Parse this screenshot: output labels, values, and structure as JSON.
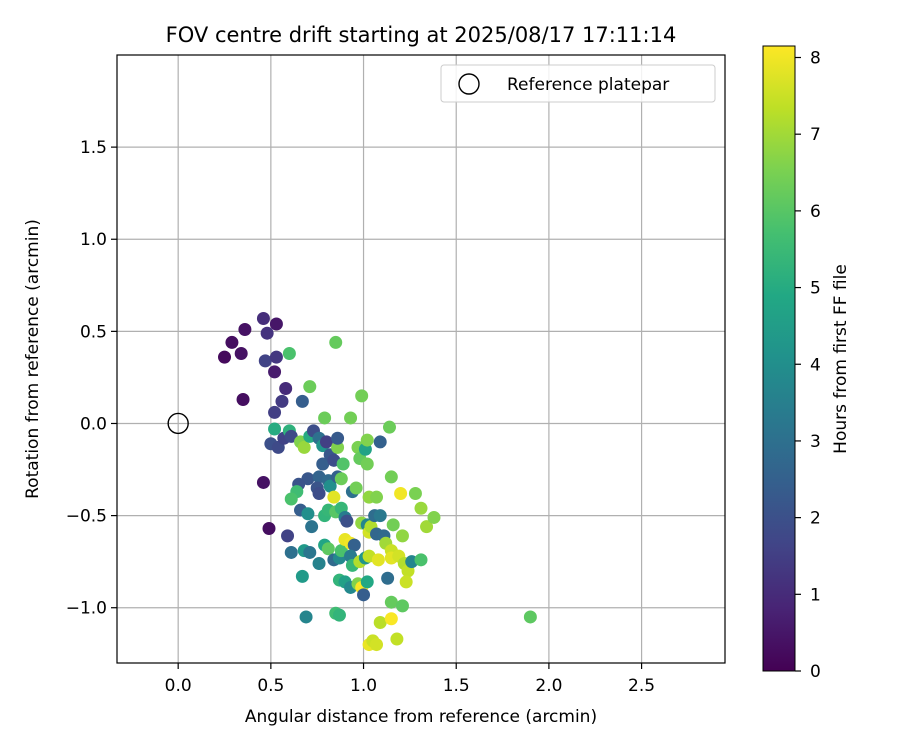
{
  "chart_data": {
    "type": "scatter",
    "title": "FOV centre drift starting at 2025/08/17 17:11:14",
    "xlabel": "Angular distance from reference (arcmin)",
    "ylabel": "Rotation from reference (arcmin)",
    "xlim": [
      -0.33,
      2.95
    ],
    "ylim": [
      -1.3,
      2.0
    ],
    "xticks": [
      0.0,
      0.5,
      1.0,
      1.5,
      2.0,
      2.5
    ],
    "xtick_labels": [
      "0.0",
      "0.5",
      "1.0",
      "1.5",
      "2.0",
      "2.5"
    ],
    "yticks": [
      -1.0,
      -0.5,
      0.0,
      0.5,
      1.0,
      1.5
    ],
    "ytick_labels": [
      "−1.0",
      "−0.5",
      "0.0",
      "0.5",
      "1.0",
      "1.5"
    ],
    "grid": true,
    "legend": {
      "placement": "top-right",
      "label": "Reference platepar"
    },
    "reference_point": {
      "x": 0.0,
      "y": 0.0
    },
    "colorbar": {
      "label": "Hours from first FF file",
      "min": 0,
      "max": 8.15,
      "colormap": "viridis",
      "ticks": [
        0,
        1,
        2,
        3,
        4,
        5,
        6,
        7,
        8
      ],
      "tick_labels": [
        "0",
        "1",
        "2",
        "3",
        "4",
        "5",
        "6",
        "7",
        "8"
      ]
    },
    "points": [
      {
        "x": 0.46,
        "y": 0.57,
        "t": 1.1
      },
      {
        "x": 0.53,
        "y": 0.54,
        "t": 0.5
      },
      {
        "x": 0.36,
        "y": 0.51,
        "t": 0.4
      },
      {
        "x": 0.48,
        "y": 0.49,
        "t": 1.2
      },
      {
        "x": 0.29,
        "y": 0.44,
        "t": 0.3
      },
      {
        "x": 0.25,
        "y": 0.36,
        "t": 0.2
      },
      {
        "x": 0.34,
        "y": 0.38,
        "t": 0.4
      },
      {
        "x": 0.47,
        "y": 0.34,
        "t": 1.6
      },
      {
        "x": 0.53,
        "y": 0.36,
        "t": 1.3
      },
      {
        "x": 0.52,
        "y": 0.28,
        "t": 0.6
      },
      {
        "x": 0.6,
        "y": 0.38,
        "t": 5.8
      },
      {
        "x": 0.85,
        "y": 0.44,
        "t": 6.2
      },
      {
        "x": 0.58,
        "y": 0.19,
        "t": 1.0
      },
      {
        "x": 0.56,
        "y": 0.12,
        "t": 1.4
      },
      {
        "x": 0.35,
        "y": 0.13,
        "t": 0.3
      },
      {
        "x": 0.52,
        "y": 0.06,
        "t": 1.5
      },
      {
        "x": 0.67,
        "y": 0.12,
        "t": 2.4
      },
      {
        "x": 0.71,
        "y": 0.2,
        "t": 6.3
      },
      {
        "x": 0.79,
        "y": 0.03,
        "t": 6.3
      },
      {
        "x": 0.93,
        "y": 0.03,
        "t": 6.4
      },
      {
        "x": 0.99,
        "y": 0.15,
        "t": 6.4
      },
      {
        "x": 1.14,
        "y": -0.02,
        "t": 6.3
      },
      {
        "x": 0.52,
        "y": -0.03,
        "t": 5.0
      },
      {
        "x": 0.5,
        "y": -0.11,
        "t": 2.0
      },
      {
        "x": 0.54,
        "y": -0.13,
        "t": 1.8
      },
      {
        "x": 0.57,
        "y": -0.08,
        "t": 1.6
      },
      {
        "x": 0.6,
        "y": -0.04,
        "t": 5.2
      },
      {
        "x": 0.61,
        "y": -0.07,
        "t": 1.8
      },
      {
        "x": 0.66,
        "y": -0.1,
        "t": 6.6
      },
      {
        "x": 0.68,
        "y": -0.13,
        "t": 6.9
      },
      {
        "x": 0.71,
        "y": -0.07,
        "t": 5.0
      },
      {
        "x": 0.73,
        "y": -0.04,
        "t": 1.9
      },
      {
        "x": 0.76,
        "y": -0.08,
        "t": 3.0
      },
      {
        "x": 0.78,
        "y": -0.12,
        "t": 4.2
      },
      {
        "x": 0.8,
        "y": -0.1,
        "t": 1.5
      },
      {
        "x": 0.78,
        "y": -0.22,
        "t": 2.4
      },
      {
        "x": 0.82,
        "y": -0.17,
        "t": 2.2
      },
      {
        "x": 0.84,
        "y": -0.2,
        "t": 1.9
      },
      {
        "x": 0.86,
        "y": -0.13,
        "t": 6.6
      },
      {
        "x": 0.86,
        "y": -0.08,
        "t": 2.3
      },
      {
        "x": 0.89,
        "y": -0.22,
        "t": 5.9
      },
      {
        "x": 0.97,
        "y": -0.13,
        "t": 6.5
      },
      {
        "x": 0.98,
        "y": -0.19,
        "t": 6.2
      },
      {
        "x": 1.01,
        "y": -0.14,
        "t": 4.7
      },
      {
        "x": 1.02,
        "y": -0.09,
        "t": 6.6
      },
      {
        "x": 1.02,
        "y": -0.22,
        "t": 6.4
      },
      {
        "x": 1.09,
        "y": -0.1,
        "t": 2.5
      },
      {
        "x": 0.7,
        "y": -0.3,
        "t": 2.2
      },
      {
        "x": 0.65,
        "y": -0.33,
        "t": 2.1
      },
      {
        "x": 0.64,
        "y": -0.37,
        "t": 5.6
      },
      {
        "x": 0.61,
        "y": -0.41,
        "t": 5.8
      },
      {
        "x": 0.76,
        "y": -0.29,
        "t": 2.6
      },
      {
        "x": 0.75,
        "y": -0.35,
        "t": 2.1
      },
      {
        "x": 0.76,
        "y": -0.38,
        "t": 1.9
      },
      {
        "x": 0.81,
        "y": -0.31,
        "t": 2.8
      },
      {
        "x": 0.82,
        "y": -0.34,
        "t": 4.0
      },
      {
        "x": 0.86,
        "y": -0.29,
        "t": 2.5
      },
      {
        "x": 0.88,
        "y": -0.3,
        "t": 6.3
      },
      {
        "x": 0.94,
        "y": -0.37,
        "t": 3.0
      },
      {
        "x": 0.96,
        "y": -0.35,
        "t": 6.4
      },
      {
        "x": 0.84,
        "y": -0.4,
        "t": 7.8
      },
      {
        "x": 0.46,
        "y": -0.32,
        "t": 0.4
      },
      {
        "x": 1.03,
        "y": -0.4,
        "t": 6.8
      },
      {
        "x": 1.07,
        "y": -0.4,
        "t": 6.6
      },
      {
        "x": 1.15,
        "y": -0.29,
        "t": 6.4
      },
      {
        "x": 1.2,
        "y": -0.38,
        "t": 8.0
      },
      {
        "x": 1.28,
        "y": -0.38,
        "t": 6.5
      },
      {
        "x": 0.66,
        "y": -0.47,
        "t": 2.4
      },
      {
        "x": 0.7,
        "y": -0.49,
        "t": 4.0
      },
      {
        "x": 0.72,
        "y": -0.56,
        "t": 3.1
      },
      {
        "x": 0.79,
        "y": -0.5,
        "t": 5.3
      },
      {
        "x": 0.81,
        "y": -0.47,
        "t": 5.4
      },
      {
        "x": 0.85,
        "y": -0.48,
        "t": 6.0
      },
      {
        "x": 0.88,
        "y": -0.46,
        "t": 5.4
      },
      {
        "x": 0.9,
        "y": -0.51,
        "t": 3.4
      },
      {
        "x": 0.91,
        "y": -0.53,
        "t": 2.0
      },
      {
        "x": 0.99,
        "y": -0.54,
        "t": 6.8
      },
      {
        "x": 1.02,
        "y": -0.55,
        "t": 3.7
      },
      {
        "x": 1.03,
        "y": -0.59,
        "t": 7.6
      },
      {
        "x": 1.04,
        "y": -0.56,
        "t": 7.2
      },
      {
        "x": 1.06,
        "y": -0.5,
        "t": 2.9
      },
      {
        "x": 1.07,
        "y": -0.6,
        "t": 2.7
      },
      {
        "x": 1.09,
        "y": -0.5,
        "t": 3.3
      },
      {
        "x": 1.11,
        "y": -0.61,
        "t": 2.8
      },
      {
        "x": 1.16,
        "y": -0.55,
        "t": 6.4
      },
      {
        "x": 1.21,
        "y": -0.61,
        "t": 6.8
      },
      {
        "x": 1.31,
        "y": -0.46,
        "t": 6.9
      },
      {
        "x": 1.34,
        "y": -0.56,
        "t": 7.0
      },
      {
        "x": 1.38,
        "y": -0.51,
        "t": 6.6
      },
      {
        "x": 0.49,
        "y": -0.57,
        "t": 0.3
      },
      {
        "x": 0.59,
        "y": -0.61,
        "t": 1.6
      },
      {
        "x": 0.61,
        "y": -0.7,
        "t": 3.0
      },
      {
        "x": 0.68,
        "y": -0.69,
        "t": 4.4
      },
      {
        "x": 0.71,
        "y": -0.7,
        "t": 3.2
      },
      {
        "x": 0.67,
        "y": -0.83,
        "t": 4.4
      },
      {
        "x": 0.76,
        "y": -0.76,
        "t": 3.6
      },
      {
        "x": 0.79,
        "y": -0.66,
        "t": 4.8
      },
      {
        "x": 0.81,
        "y": -0.68,
        "t": 6.1
      },
      {
        "x": 0.84,
        "y": -0.74,
        "t": 2.8
      },
      {
        "x": 0.87,
        "y": -0.73,
        "t": 3.8
      },
      {
        "x": 0.88,
        "y": -0.69,
        "t": 5.8
      },
      {
        "x": 0.9,
        "y": -0.63,
        "t": 7.9
      },
      {
        "x": 0.93,
        "y": -0.65,
        "t": 8.0
      },
      {
        "x": 0.95,
        "y": -0.66,
        "t": 2.5
      },
      {
        "x": 0.93,
        "y": -0.72,
        "t": 3.4
      },
      {
        "x": 0.94,
        "y": -0.77,
        "t": 5.4
      },
      {
        "x": 0.98,
        "y": -0.75,
        "t": 7.2
      },
      {
        "x": 1.01,
        "y": -0.73,
        "t": 4.2
      },
      {
        "x": 1.03,
        "y": -0.72,
        "t": 7.4
      },
      {
        "x": 1.08,
        "y": -0.74,
        "t": 7.8
      },
      {
        "x": 1.12,
        "y": -0.65,
        "t": 7.0
      },
      {
        "x": 1.15,
        "y": -0.69,
        "t": 7.5
      },
      {
        "x": 1.15,
        "y": -0.73,
        "t": 7.8
      },
      {
        "x": 1.19,
        "y": -0.72,
        "t": 7.6
      },
      {
        "x": 1.22,
        "y": -0.76,
        "t": 7.2
      },
      {
        "x": 1.24,
        "y": -0.8,
        "t": 7.4
      },
      {
        "x": 1.26,
        "y": -0.75,
        "t": 3.7
      },
      {
        "x": 1.31,
        "y": -0.74,
        "t": 5.8
      },
      {
        "x": 1.23,
        "y": -0.86,
        "t": 7.5
      },
      {
        "x": 1.13,
        "y": -0.84,
        "t": 2.9
      },
      {
        "x": 0.87,
        "y": -0.85,
        "t": 5.3
      },
      {
        "x": 0.9,
        "y": -0.86,
        "t": 4.6
      },
      {
        "x": 0.93,
        "y": -0.89,
        "t": 3.8
      },
      {
        "x": 0.97,
        "y": -0.87,
        "t": 6.6
      },
      {
        "x": 0.99,
        "y": -0.89,
        "t": 8.1
      },
      {
        "x": 1.0,
        "y": -0.93,
        "t": 2.4
      },
      {
        "x": 1.02,
        "y": -0.86,
        "t": 4.9
      },
      {
        "x": 0.85,
        "y": -1.03,
        "t": 5.6
      },
      {
        "x": 0.87,
        "y": -1.04,
        "t": 5.3
      },
      {
        "x": 0.69,
        "y": -1.05,
        "t": 3.7
      },
      {
        "x": 1.15,
        "y": -0.97,
        "t": 6.2
      },
      {
        "x": 1.21,
        "y": -0.99,
        "t": 6.1
      },
      {
        "x": 1.09,
        "y": -1.08,
        "t": 7.3
      },
      {
        "x": 1.15,
        "y": -1.06,
        "t": 8.1
      },
      {
        "x": 1.18,
        "y": -1.17,
        "t": 7.4
      },
      {
        "x": 1.03,
        "y": -1.2,
        "t": 7.9
      },
      {
        "x": 1.05,
        "y": -1.18,
        "t": 7.5
      },
      {
        "x": 1.07,
        "y": -1.2,
        "t": 7.6
      },
      {
        "x": 1.9,
        "y": -1.05,
        "t": 6.1
      }
    ]
  },
  "colors": {
    "reference_marker": "#000000",
    "grid": "#b0b0b0",
    "axes": "#000000"
  }
}
